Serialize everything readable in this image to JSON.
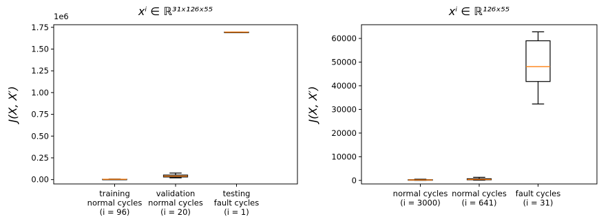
{
  "chart_data": [
    {
      "type": "box",
      "title": "xⁱ ∈ ℝ³¹ˣ¹²⁶ˣ⁵⁵",
      "ylabel": "J(X, X′)",
      "y_offset_label": "1e6",
      "ylim": [
        -50000,
        1780000
      ],
      "y_ticks": [
        0,
        250000,
        500000,
        750000,
        1000000,
        1250000,
        1500000,
        1750000
      ],
      "y_tick_labels": [
        "0.00",
        "0.25",
        "0.50",
        "0.75",
        "1.00",
        "1.25",
        "1.50",
        "1.75"
      ],
      "categories": [
        [
          "training",
          "normal cycles",
          "(i = 96)"
        ],
        [
          "validation",
          "normal cycles",
          "(i = 20)"
        ],
        [
          "testing",
          "fault cycles",
          "(i = 1)"
        ]
      ],
      "boxes": [
        {
          "whisker_low": 1500,
          "q1": 2500,
          "median": 3500,
          "q3": 4500,
          "whisker_high": 6000
        },
        {
          "whisker_low": 20000,
          "q1": 30000,
          "median": 40000,
          "q3": 52000,
          "whisker_high": 75000
        },
        {
          "whisker_low": 1695000,
          "q1": 1695000,
          "median": 1695000,
          "q3": 1695000,
          "whisker_high": 1695000
        }
      ],
      "colors": {
        "box": "#000000",
        "median": "#ff7f0e"
      }
    },
    {
      "type": "box",
      "title": "xⁱ ∈ ℝ¹²⁶ˣ⁵⁵",
      "ylabel": "J(X, X′)",
      "y_offset_label": "",
      "ylim": [
        -1500,
        65800
      ],
      "y_ticks": [
        0,
        10000,
        20000,
        30000,
        40000,
        50000,
        60000
      ],
      "y_tick_labels": [
        "0",
        "10000",
        "20000",
        "30000",
        "40000",
        "50000",
        "60000"
      ],
      "categories": [
        [
          "normal cycles",
          "(i = 3000)"
        ],
        [
          "normal cycles",
          "(i = 641)"
        ],
        [
          "fault cycles",
          "(i = 31)"
        ]
      ],
      "boxes": [
        {
          "whisker_low": 50,
          "q1": 120,
          "median": 200,
          "q3": 300,
          "whisker_high": 500
        },
        {
          "whisker_low": 100,
          "q1": 250,
          "median": 400,
          "q3": 700,
          "whisker_high": 1300
        },
        {
          "whisker_low": 32300,
          "q1": 41800,
          "median": 48100,
          "q3": 59000,
          "whisker_high": 62800
        }
      ],
      "colors": {
        "box": "#000000",
        "median": "#ff7f0e"
      }
    }
  ]
}
